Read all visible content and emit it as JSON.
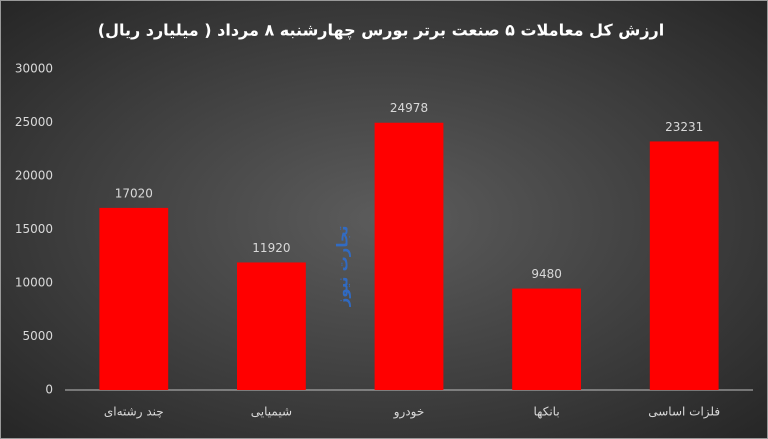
{
  "chart_data": {
    "type": "bar",
    "title": "ارزش کل معاملات ۵ صنعت برتر بورس چهارشنبه ۸ مرداد ( میلیارد ریال)",
    "categories": [
      "چند رشته‌ای",
      "شیمیایی",
      "خودرو",
      "بانکها",
      "فلزات اساسی"
    ],
    "values": [
      17020,
      11920,
      24978,
      9480,
      23231
    ],
    "color": "#ff0000",
    "ylim": [
      0,
      30000
    ],
    "yticks": [
      0,
      5000,
      10000,
      15000,
      20000,
      25000,
      30000
    ],
    "grid": false,
    "watermark": "تجارت نیوز"
  }
}
